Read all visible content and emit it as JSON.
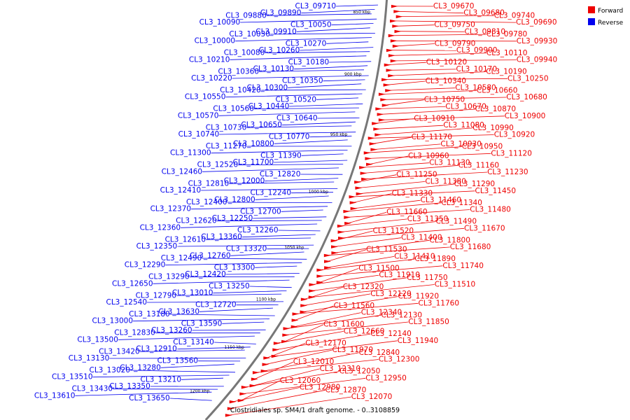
{
  "caption": "Clostridiales sp. SM4/1 draft genome. - 0..3108859",
  "legend": [
    {
      "label": "Forward",
      "color": "#ee0000"
    },
    {
      "label": "Reverse",
      "color": "#0000ee"
    }
  ],
  "colors": {
    "forward": "#ee0000",
    "reverse": "#0000ee",
    "backbone": "#777777"
  },
  "ticks": [
    "850 kbp",
    "900 kbp",
    "950 kbp",
    "1000 kbp",
    "1050 kbp",
    "1100 kbp",
    "1150 kbp",
    "1200 kbp"
  ],
  "reverse_labels": [
    "CL3_09710",
    "CL3_09890",
    "CL3_09880",
    "CL3_10090",
    "CL3_10050",
    "CL3_09910",
    "CL3_10030",
    "CL3_10000",
    "CL3_10270",
    "CL3_10260",
    "CL3_10080",
    "CL3_10210",
    "CL3_10180",
    "CL3_10130",
    "CL3_10360",
    "CL3_10220",
    "CL3_10350",
    "CL3_10300",
    "CL3_10420",
    "CL3_10550",
    "CL3_10520",
    "CL3_10440",
    "CL3_10560",
    "CL3_10570",
    "CL3_10640",
    "CL3_10650",
    "CL3_10730",
    "CL3_10740",
    "CL3_10770",
    "CL3_10800",
    "CL3_11270",
    "CL3_11300",
    "CL3_11390",
    "CL3_11700",
    "CL3_12520",
    "CL3_12460",
    "CL3_12820",
    "CL3_12000",
    "CL3_12810",
    "CL3_12410",
    "CL3_12240",
    "CL3_12800",
    "CL3_12400",
    "CL3_12370",
    "CL3_12700",
    "CL3_12250",
    "CL3_12620",
    "CL3_12360",
    "CL3_12260",
    "CL3_13360",
    "CL3_12610",
    "CL3_12350",
    "CL3_13320",
    "CL3_12760",
    "CL3_12490",
    "CL3_12290",
    "CL3_13300",
    "CL3_12420",
    "CL3_13290",
    "CL3_12650",
    "CL3_13250",
    "CL3_13010",
    "CL3_12790",
    "CL3_12540",
    "CL3_12720",
    "CL3_13630",
    "CL3_13180",
    "CL3_13000",
    "CL3_13590",
    "CL3_13260",
    "CL3_12830",
    "CL3_13500",
    "CL3_13140",
    "CL3_12910",
    "CL3_13420",
    "CL3_13130",
    "CL3_13560",
    "CL3_13280",
    "CL3_13020",
    "CL3_13510",
    "CL3_13210",
    "CL3_13350",
    "CL3_13430",
    "CL3_13610",
    "CL3_13650"
  ],
  "forward_labels": [
    "CL3_09670",
    "CL3_09680",
    "CL3_09740",
    "CL3_09690",
    "CL3_09750",
    "CL3_09810",
    "CL3_09780",
    "CL3_09930",
    "CL3_09790",
    "CL3_09900",
    "CL3_10110",
    "CL3_09940",
    "CL3_10120",
    "CL3_10170",
    "CL3_10190",
    "CL3_10250",
    "CL3_10340",
    "CL3_10580",
    "CL3_10660",
    "CL3_10680",
    "CL3_10750",
    "CL3_10670",
    "CL3_10870",
    "CL3_10900",
    "CL3_10910",
    "CL3_11080",
    "CL3_10990",
    "CL3_10920",
    "CL3_11170",
    "CL3_10930",
    "CL3_10950",
    "CL3_11120",
    "CL3_10960",
    "CL3_11130",
    "CL3_11160",
    "CL3_11230",
    "CL3_11250",
    "CL3_11380",
    "CL3_11290",
    "CL3_11450",
    "CL3_11330",
    "CL3_11460",
    "CL3_11340",
    "CL3_11480",
    "CL3_11660",
    "CL3_11350",
    "CL3_11490",
    "CL3_11670",
    "CL3_11520",
    "CL3_11400",
    "CL3_11800",
    "CL3_11680",
    "CL3_11530",
    "CL3_11410",
    "CL3_11890",
    "CL3_11740",
    "CL3_11500",
    "CL3_11910",
    "CL3_11750",
    "CL3_11510",
    "CL3_12320",
    "CL3_12120",
    "CL3_11920",
    "CL3_11760",
    "CL3_11560",
    "CL3_12340",
    "CL3_12130",
    "CL3_11850",
    "CL3_11600",
    "CL3_12660",
    "CL3_12140",
    "CL3_11940",
    "CL3_12170",
    "CL3_11970",
    "CL3_12840",
    "CL3_12300",
    "CL3_12010",
    "CL3_12310",
    "CL3_12050",
    "CL3_12950",
    "CL3_12060",
    "CL3_12980",
    "CL3_12870",
    "CL3_12070"
  ]
}
